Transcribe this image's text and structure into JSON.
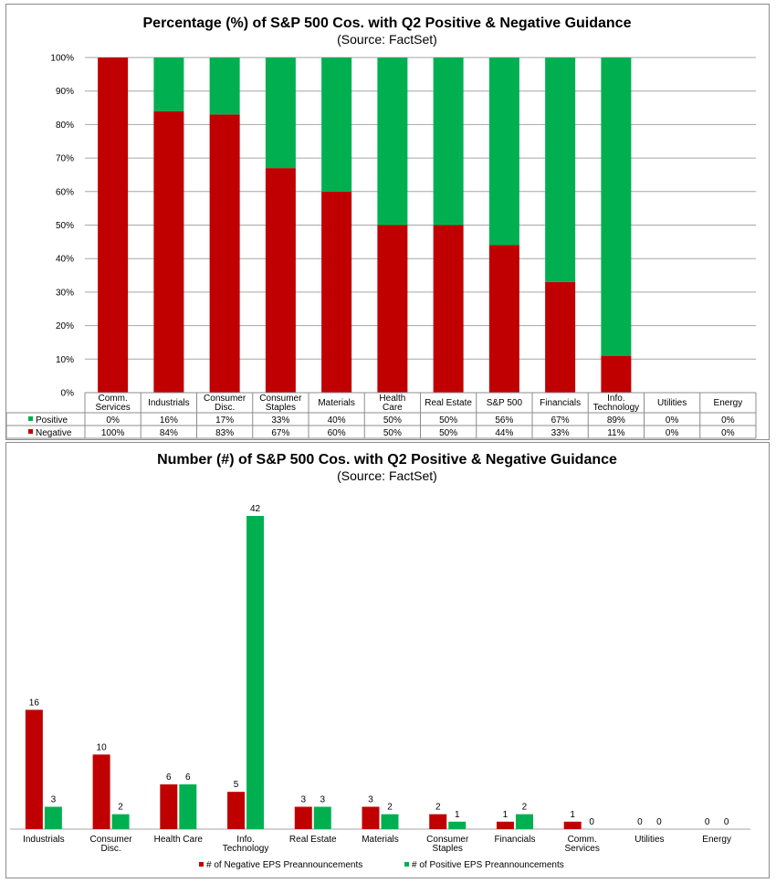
{
  "colors": {
    "negative": "#c00000",
    "positive": "#00b050",
    "grid": "#a6a6a6"
  },
  "top": {
    "title": "Percentage (%) of S&P 500 Cos. with Q2 Positive & Negative Guidance",
    "subtitle": "(Source: FactSet)",
    "chart_data": {
      "type": "bar",
      "stacked": true,
      "categories": [
        [
          "Comm.",
          "Services"
        ],
        [
          "Industrials"
        ],
        [
          "Consumer",
          "Disc."
        ],
        [
          "Consumer",
          "Staples"
        ],
        [
          "Materials"
        ],
        [
          "Health",
          "Care"
        ],
        [
          "Real Estate"
        ],
        [
          "S&P 500"
        ],
        [
          "Financials"
        ],
        [
          "Info.",
          "Technology"
        ],
        [
          "Utilities"
        ],
        [
          "Energy"
        ]
      ],
      "y_ticks": [
        "0%",
        "10%",
        "20%",
        "30%",
        "40%",
        "50%",
        "60%",
        "70%",
        "80%",
        "90%",
        "100%"
      ],
      "ylim": [
        0,
        100
      ],
      "grid": true,
      "series": [
        {
          "name": "Positive",
          "values": [
            0,
            16,
            17,
            33,
            40,
            50,
            50,
            56,
            67,
            89,
            0,
            0
          ],
          "labels": [
            "0%",
            "16%",
            "17%",
            "33%",
            "40%",
            "50%",
            "50%",
            "56%",
            "67%",
            "89%",
            "0%",
            "0%"
          ]
        },
        {
          "name": "Negative",
          "values": [
            100,
            84,
            83,
            67,
            60,
            50,
            50,
            44,
            33,
            11,
            0,
            0
          ],
          "labels": [
            "100%",
            "84%",
            "83%",
            "67%",
            "60%",
            "50%",
            "50%",
            "44%",
            "33%",
            "11%",
            "0%",
            "0%"
          ]
        }
      ],
      "legend": "data-table"
    }
  },
  "bottom": {
    "title": "Number (#) of S&P 500 Cos. with Q2 Positive & Negative Guidance",
    "subtitle": "(Source: FactSet)",
    "chart_data": {
      "type": "bar",
      "categories": [
        [
          "Industrials"
        ],
        [
          "Consumer",
          "Disc."
        ],
        [
          "Health Care"
        ],
        [
          "Info.",
          "Technology"
        ],
        [
          "Real Estate"
        ],
        [
          "Materials"
        ],
        [
          "Consumer",
          "Staples"
        ],
        [
          "Financials"
        ],
        [
          "Comm.",
          "Services"
        ],
        [
          "Utilities"
        ],
        [
          "Energy"
        ]
      ],
      "ylim": [
        0,
        42
      ],
      "grid": false,
      "series": [
        {
          "name": "# of Negative EPS Preannouncements",
          "values": [
            16,
            10,
            6,
            5,
            3,
            3,
            2,
            1,
            1,
            0,
            0
          ]
        },
        {
          "name": "# of Positive EPS Preannouncements",
          "values": [
            3,
            2,
            6,
            42,
            3,
            2,
            1,
            2,
            0,
            0,
            0
          ]
        }
      ],
      "legend": "bottom"
    }
  }
}
